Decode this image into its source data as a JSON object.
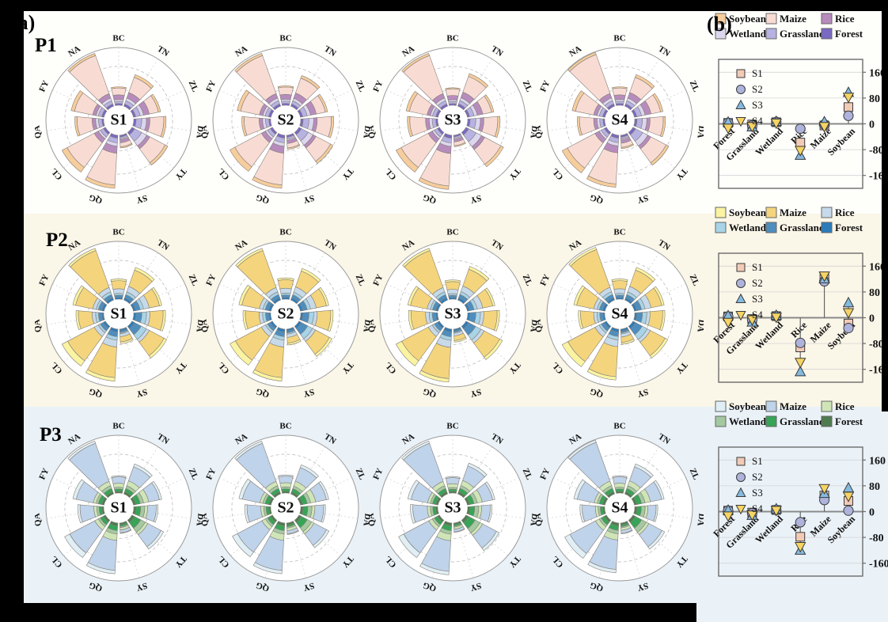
{
  "figure": {
    "panel_a_label": "(a)",
    "panel_b_label": "(b)"
  },
  "chart_data": {
    "rose_sector_labels": [
      "BC",
      "TN",
      "ZL",
      "DA",
      "TY",
      "SY",
      "QG",
      "CL",
      "QA",
      "FY",
      "NA"
    ],
    "scenario_ids": [
      "S1",
      "S2",
      "S3",
      "S4"
    ],
    "stack_order": [
      "Forest",
      "Grassland",
      "Wetland",
      "Rice",
      "Maize",
      "Soybean"
    ],
    "scatter_categories": [
      "Forest",
      "Grassland",
      "Wetland",
      "Rice",
      "Maize",
      "Soybean"
    ],
    "scatter_yticks": [
      160,
      80,
      0,
      -80,
      -160
    ],
    "scatter_ylim": [
      -200,
      200
    ],
    "series_markers": [
      {
        "id": "S1",
        "shape": "square",
        "fill": "#F2CBB7"
      },
      {
        "id": "S2",
        "shape": "circle",
        "fill": "#AEB3DC"
      },
      {
        "id": "S3",
        "shape": "triangle-up",
        "fill": "#85BADF"
      },
      {
        "id": "S4",
        "shape": "triangle-down",
        "fill": "#F6D463"
      }
    ],
    "rows": [
      {
        "id": "P1",
        "band_color": "#FEFEFB",
        "legend": [
          {
            "label": "Soybean",
            "color": "#F6CD9C"
          },
          {
            "label": "Maize",
            "color": "#F8DCD4"
          },
          {
            "label": "Rice",
            "color": "#B78CBD"
          },
          {
            "label": "Wetland",
            "color": "#DCD7EF"
          },
          {
            "label": "Grassland",
            "color": "#B6B2E2"
          },
          {
            "label": "Forest",
            "color": "#7A68C3"
          }
        ],
        "rose_type": "polar_stacked_bar",
        "rose_stacks": [
          [
            3,
            4,
            3,
            8,
            12,
            2
          ],
          [
            4,
            6,
            5,
            10,
            28,
            5
          ],
          [
            4,
            8,
            6,
            10,
            16,
            4
          ],
          [
            4,
            10,
            8,
            6,
            24,
            4
          ],
          [
            5,
            14,
            10,
            6,
            30,
            5
          ],
          [
            3,
            3,
            2,
            5,
            7,
            2
          ],
          [
            5,
            8,
            6,
            12,
            55,
            6
          ],
          [
            4,
            6,
            4,
            8,
            53,
            10
          ],
          [
            3,
            6,
            5,
            6,
            26,
            4
          ],
          [
            4,
            6,
            4,
            6,
            32,
            6
          ],
          [
            4,
            6,
            5,
            8,
            70,
            4
          ]
        ],
        "rose_scales": {
          "S1": [
            1,
            1,
            1,
            1,
            1,
            1,
            1,
            1,
            1,
            1,
            1
          ],
          "S2": [
            1.05,
            0.97,
            1.0,
            1.02,
            0.95,
            1.1,
            1.0,
            0.98,
            1.0,
            1.03,
            1.0
          ],
          "S3": [
            0.95,
            1.03,
            0.97,
            1.0,
            1.05,
            0.9,
            1.02,
            1.0,
            1.05,
            0.97,
            1.0
          ],
          "S4": [
            1.0,
            1.0,
            1.05,
            0.95,
            1.0,
            1.05,
            0.98,
            1.02,
            0.95,
            1.0,
            1.02
          ]
        },
        "scatter": {
          "type": "scatter",
          "values": {
            "Forest": [
              3,
              3,
              5,
              -13
            ],
            "Grassland": [
              -2,
              -5,
              -10,
              -8
            ],
            "Wetland": [
              5,
              6,
              7,
              3
            ],
            "Rice": [
              -58,
              -15,
              -98,
              -82
            ],
            "Maize": [
              -5,
              -2,
              6,
              -8
            ],
            "Soybean": [
              52,
              25,
              97,
              83
            ]
          },
          "stems": {
            "Forest": [
              -14,
              6
            ],
            "Grassland": [
              -12,
              0
            ],
            "Wetland": [
              0,
              8
            ],
            "Rice": [
              -100,
              -5
            ],
            "Maize": [
              -10,
              7
            ],
            "Soybean": [
              0,
              100
            ]
          }
        }
      },
      {
        "id": "P2",
        "band_color": "#FAF6E8",
        "legend": [
          {
            "label": "Soybean",
            "color": "#FAF3A2"
          },
          {
            "label": "Maize",
            "color": "#F4D57D"
          },
          {
            "label": "Rice",
            "color": "#C7DAEA"
          },
          {
            "label": "Wetland",
            "color": "#A8D4E8"
          },
          {
            "label": "Grassland",
            "color": "#4E8EBE"
          },
          {
            "label": "Forest",
            "color": "#2C7CBA"
          }
        ],
        "rose_type": "polar_stacked_bar",
        "rose_stacks": [
          [
            3,
            4,
            3,
            8,
            14,
            3
          ],
          [
            4,
            6,
            5,
            10,
            30,
            5
          ],
          [
            4,
            8,
            6,
            10,
            18,
            4
          ],
          [
            4,
            10,
            8,
            6,
            23,
            4
          ],
          [
            5,
            13,
            10,
            6,
            29,
            5
          ],
          [
            3,
            3,
            2,
            5,
            9,
            3
          ],
          [
            5,
            8,
            6,
            12,
            53,
            6
          ],
          [
            4,
            6,
            4,
            8,
            52,
            11
          ],
          [
            3,
            6,
            5,
            6,
            24,
            4
          ],
          [
            4,
            6,
            4,
            6,
            30,
            5
          ],
          [
            4,
            6,
            5,
            8,
            68,
            4
          ]
        ],
        "rose_scales": {
          "S1": [
            1,
            1,
            1,
            1,
            1,
            1,
            1,
            1,
            1,
            1,
            1
          ],
          "S2": [
            1.05,
            0.97,
            1.0,
            1.02,
            0.95,
            1.1,
            1.0,
            0.98,
            1.0,
            1.03,
            1.0
          ],
          "S3": [
            0.95,
            1.03,
            0.97,
            1.0,
            1.05,
            0.9,
            1.02,
            1.0,
            1.05,
            0.97,
            1.0
          ],
          "S4": [
            1.0,
            1.0,
            1.05,
            0.95,
            1.0,
            1.05,
            0.98,
            1.02,
            0.95,
            1.0,
            1.02
          ]
        },
        "scatter": {
          "type": "scatter",
          "values": {
            "Forest": [
              4,
              4,
              6,
              -14
            ],
            "Grassland": [
              -4,
              -6,
              -14,
              -6
            ],
            "Wetland": [
              5,
              5,
              7,
              2
            ],
            "Rice": [
              -92,
              -78,
              -168,
              -138
            ],
            "Maize": [
              122,
              113,
              120,
              130
            ],
            "Soybean": [
              -18,
              -32,
              46,
              16
            ]
          },
          "stems": {
            "Forest": [
              -15,
              7
            ],
            "Grassland": [
              -15,
              0
            ],
            "Wetland": [
              0,
              8
            ],
            "Rice": [
              -170,
              0
            ],
            "Maize": [
              0,
              133
            ],
            "Soybean": [
              -35,
              48
            ]
          }
        }
      },
      {
        "id": "P3",
        "band_color": "#EAF2F8",
        "legend": [
          {
            "label": "Soybean",
            "color": "#E0EFF5"
          },
          {
            "label": "Maize",
            "color": "#BFD3EA"
          },
          {
            "label": "Rice",
            "color": "#CFE5B8"
          },
          {
            "label": "Wetland",
            "color": "#A4C9A1"
          },
          {
            "label": "Grassland",
            "color": "#37A458"
          },
          {
            "label": "Forest",
            "color": "#4F7B50"
          }
        ],
        "rose_type": "polar_stacked_bar",
        "rose_stacks": [
          [
            3,
            4,
            3,
            7,
            11,
            2
          ],
          [
            4,
            6,
            5,
            9,
            26,
            5
          ],
          [
            4,
            8,
            6,
            9,
            19,
            4
          ],
          [
            4,
            8,
            7,
            5,
            15,
            3
          ],
          [
            5,
            12,
            9,
            5,
            26,
            5
          ],
          [
            3,
            3,
            2,
            4,
            5,
            1
          ],
          [
            5,
            8,
            6,
            11,
            52,
            6
          ],
          [
            4,
            6,
            4,
            7,
            49,
            10
          ],
          [
            3,
            5,
            4,
            5,
            24,
            4
          ],
          [
            4,
            6,
            4,
            5,
            30,
            6
          ],
          [
            4,
            6,
            5,
            8,
            70,
            4
          ]
        ],
        "rose_scales": {
          "S1": [
            1,
            1,
            1,
            1,
            1,
            1,
            1,
            1,
            1,
            1,
            1
          ],
          "S2": [
            1.05,
            0.97,
            1.0,
            1.02,
            0.95,
            1.1,
            1.0,
            0.98,
            1.0,
            1.03,
            1.0
          ],
          "S3": [
            0.95,
            1.03,
            0.97,
            1.0,
            1.05,
            0.9,
            1.02,
            1.0,
            1.05,
            0.97,
            1.0
          ],
          "S4": [
            1.0,
            1.0,
            1.05,
            0.95,
            1.0,
            1.05,
            0.98,
            1.02,
            0.95,
            1.0,
            1.02
          ]
        },
        "scatter": {
          "type": "scatter",
          "values": {
            "Forest": [
              3,
              3,
              4,
              -13
            ],
            "Grassland": [
              -3,
              -5,
              -12,
              -10
            ],
            "Wetland": [
              5,
              5,
              8,
              4
            ],
            "Rice": [
              -78,
              -33,
              -120,
              -108
            ],
            "Maize": [
              50,
              36,
              56,
              72
            ],
            "Soybean": [
              33,
              3,
              73,
              48
            ]
          },
          "stems": {
            "Forest": [
              -14,
              5
            ],
            "Grassland": [
              -13,
              0
            ],
            "Wetland": [
              0,
              9
            ],
            "Rice": [
              -122,
              0
            ],
            "Maize": [
              0,
              75
            ],
            "Soybean": [
              0,
              75
            ]
          }
        }
      }
    ]
  }
}
